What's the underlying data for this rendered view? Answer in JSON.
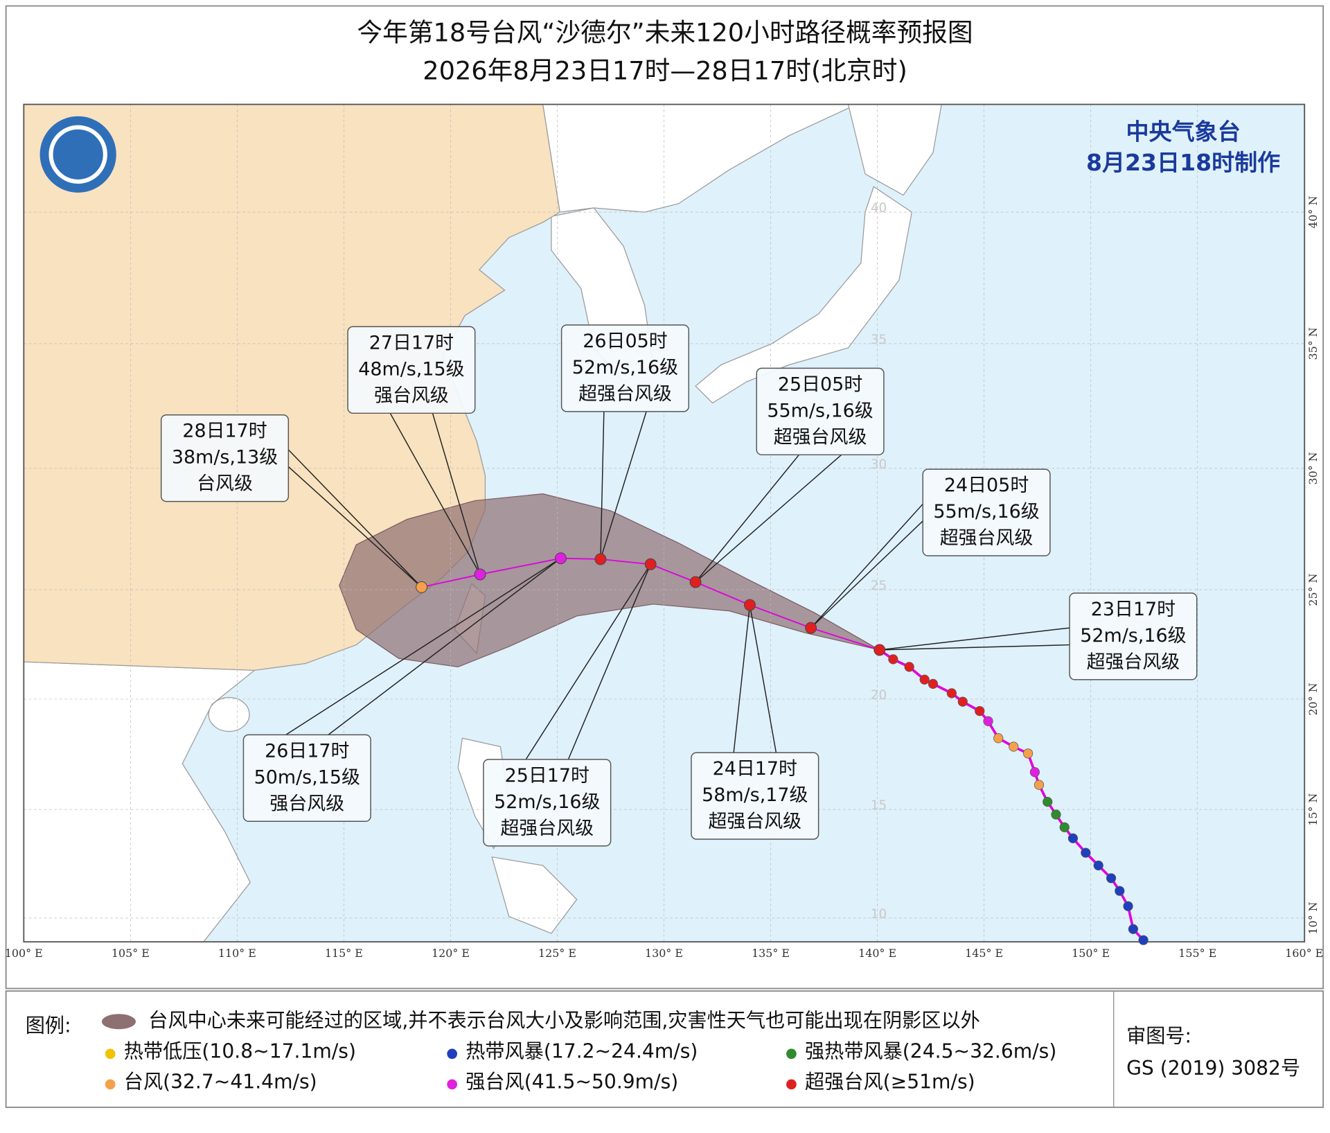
{
  "header": {
    "title": "今年第18号台风“沙德尔”未来120小时路径概率预报图",
    "subtitle": "2026年8月23日17时—28日17时(北京时)"
  },
  "map": {
    "agency": "中央气象台",
    "issued": "8月23日18时制作",
    "lon_labels": [
      "100° E",
      "105° E",
      "110° E",
      "115° E",
      "120° E",
      "125° E",
      "130° E",
      "135° E",
      "140° E",
      "145° E",
      "150° E",
      "155° E",
      "160° E"
    ],
    "lat_labels": [
      "40° N",
      "35° N",
      "30° N",
      "25° N",
      "20° N",
      "15° N",
      "10° N"
    ],
    "lat_inner_labels": [
      "40",
      "35",
      "30",
      "25",
      "20",
      "15",
      "10"
    ],
    "forecasts": [
      {
        "time": "23日17时",
        "wind": "52m/s,16级",
        "grade": "超强台风级"
      },
      {
        "time": "24日05时",
        "wind": "55m/s,16级",
        "grade": "超强台风级"
      },
      {
        "time": "24日17时",
        "wind": "58m/s,17级",
        "grade": "超强台风级"
      },
      {
        "time": "25日05时",
        "wind": "55m/s,16级",
        "grade": "超强台风级"
      },
      {
        "time": "25日17时",
        "wind": "52m/s,16级",
        "grade": "超强台风级"
      },
      {
        "time": "26日05时",
        "wind": "52m/s,16级",
        "grade": "超强台风级"
      },
      {
        "time": "26日17时",
        "wind": "50m/s,15级",
        "grade": "强台风级"
      },
      {
        "time": "27日17时",
        "wind": "48m/s,15级",
        "grade": "强台风级"
      },
      {
        "time": "28日17时",
        "wind": "38m/s,13级",
        "grade": "台风级"
      }
    ]
  },
  "legend": {
    "label": "图例:",
    "cone_note": "台风中心未来可能经过的区域,并不表示台风大小及影响范围,灾害性天气也可能出现在阴影区以外",
    "items": [
      {
        "text": "热带低压(10.8~17.1m/s)",
        "color": "#f2c200"
      },
      {
        "text": "热带风暴(17.2~24.4m/s)",
        "color": "#1f3fbf"
      },
      {
        "text": "强热带风暴(24.5~32.6m/s)",
        "color": "#2e8b2e"
      },
      {
        "text": "台风(32.7~41.4m/s)",
        "color": "#f5a04a"
      },
      {
        "text": "强台风(41.5~50.9m/s)",
        "color": "#e020e0"
      },
      {
        "text": "超强台风(≥51m/s)",
        "color": "#e02020"
      }
    ]
  },
  "approval": {
    "label": "审图号:",
    "number": "GS (2019) 3082号"
  }
}
